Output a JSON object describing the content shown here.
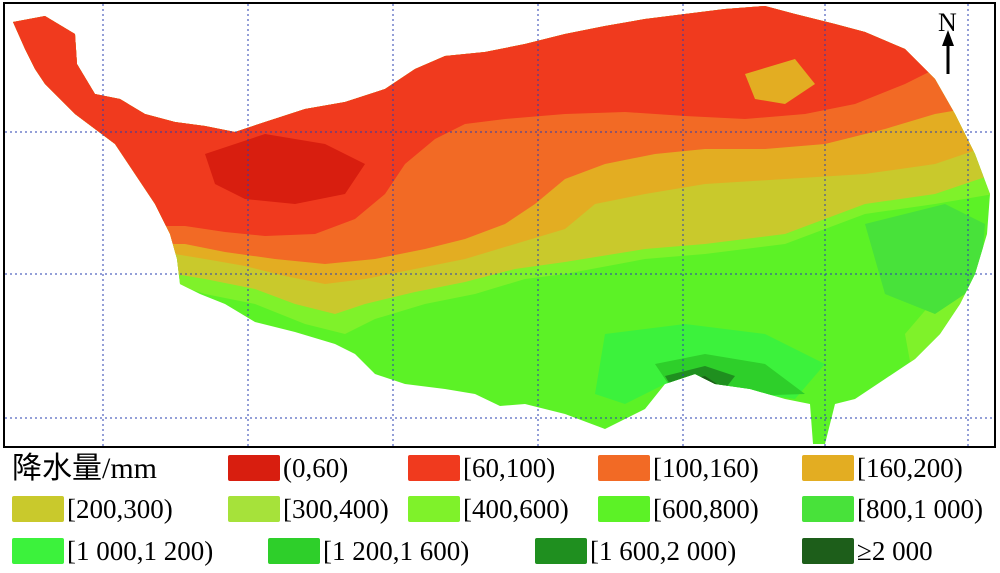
{
  "legend": {
    "title": "降水量/mm",
    "items": [
      {
        "label": "(0,60)",
        "color": "#d81e0f"
      },
      {
        "label": "[60,100)",
        "color": "#f03a1e"
      },
      {
        "label": "[100,160)",
        "color": "#f26a25"
      },
      {
        "label": "[160,200)",
        "color": "#e3ad22"
      },
      {
        "label": "[200,300)",
        "color": "#c9c92c"
      },
      {
        "label": "[300,400)",
        "color": "#a6e23a"
      },
      {
        "label": "[400,600)",
        "color": "#7ff22a"
      },
      {
        "label": "[600,800)",
        "color": "#5cf226"
      },
      {
        "label": "[800,1 000)",
        "color": "#48e23a"
      },
      {
        "label": "[1 000,1 200)",
        "color": "#3cf23c"
      },
      {
        "label": "[1 200,1 600)",
        "color": "#2ecf2a"
      },
      {
        "label": "[1 600,2 000)",
        "color": "#1f8f1f"
      },
      {
        "label": "≥2 000",
        "color": "#1d5e1a"
      }
    ]
  },
  "north_arrow": {
    "label": "N"
  }
}
